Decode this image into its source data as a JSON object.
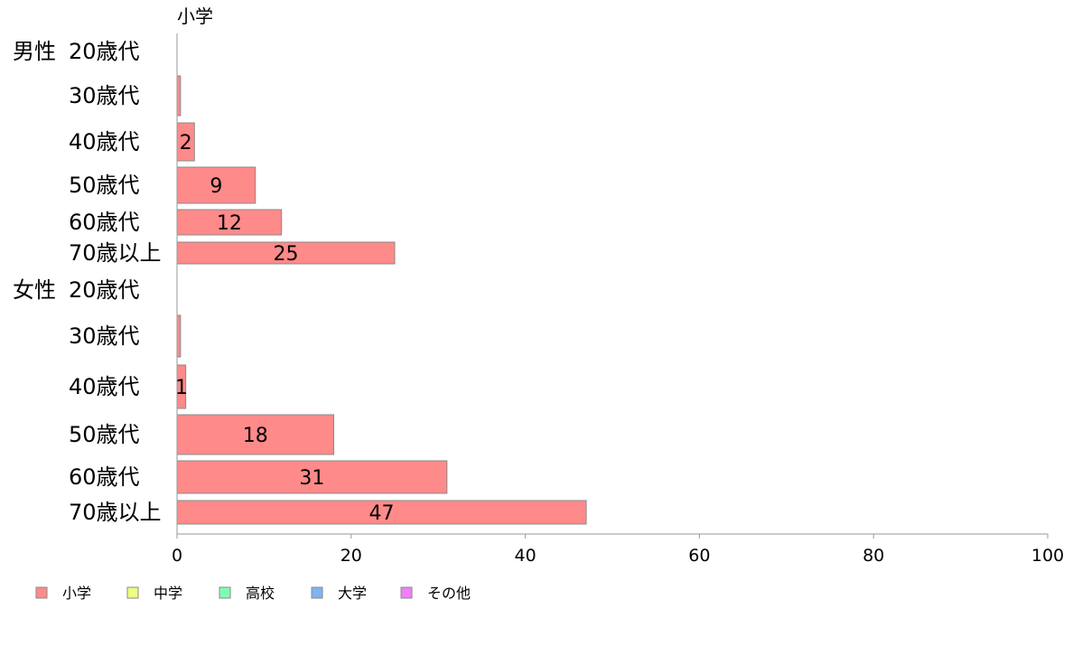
{
  "chart_data": {
    "type": "bar",
    "orientation": "horizontal",
    "series_title": "小学",
    "groups": [
      {
        "label": "男性",
        "categories": [
          "20歳代",
          "30歳代",
          "40歳代",
          "50歳代",
          "60歳代",
          "70歳以上"
        ]
      },
      {
        "label": "女性",
        "categories": [
          "20歳代",
          "30歳代",
          "40歳代",
          "50歳代",
          "60歳代",
          "70歳以上"
        ]
      }
    ],
    "series": [
      {
        "name": "小学",
        "color": "#ff8a8a",
        "values": [
          0,
          0.4,
          2,
          9,
          12,
          25,
          0,
          0.4,
          1,
          18,
          31,
          47
        ],
        "labels": [
          "",
          "",
          "2",
          "9",
          "12",
          "25",
          "",
          "",
          "1",
          "18",
          "31",
          "47"
        ]
      }
    ],
    "xlim": [
      0,
      100
    ],
    "xticks": [
      0,
      20,
      40,
      60,
      80,
      100
    ],
    "grid": false,
    "legend": {
      "position": "bottom-left",
      "items": [
        {
          "label": "小学",
          "color": "#ff8a8a"
        },
        {
          "label": "中学",
          "color": "#eeff80"
        },
        {
          "label": "高校",
          "color": "#80ffb4"
        },
        {
          "label": "大学",
          "color": "#80b4f0"
        },
        {
          "label": "その他",
          "color": "#ee80f8"
        }
      ]
    }
  }
}
